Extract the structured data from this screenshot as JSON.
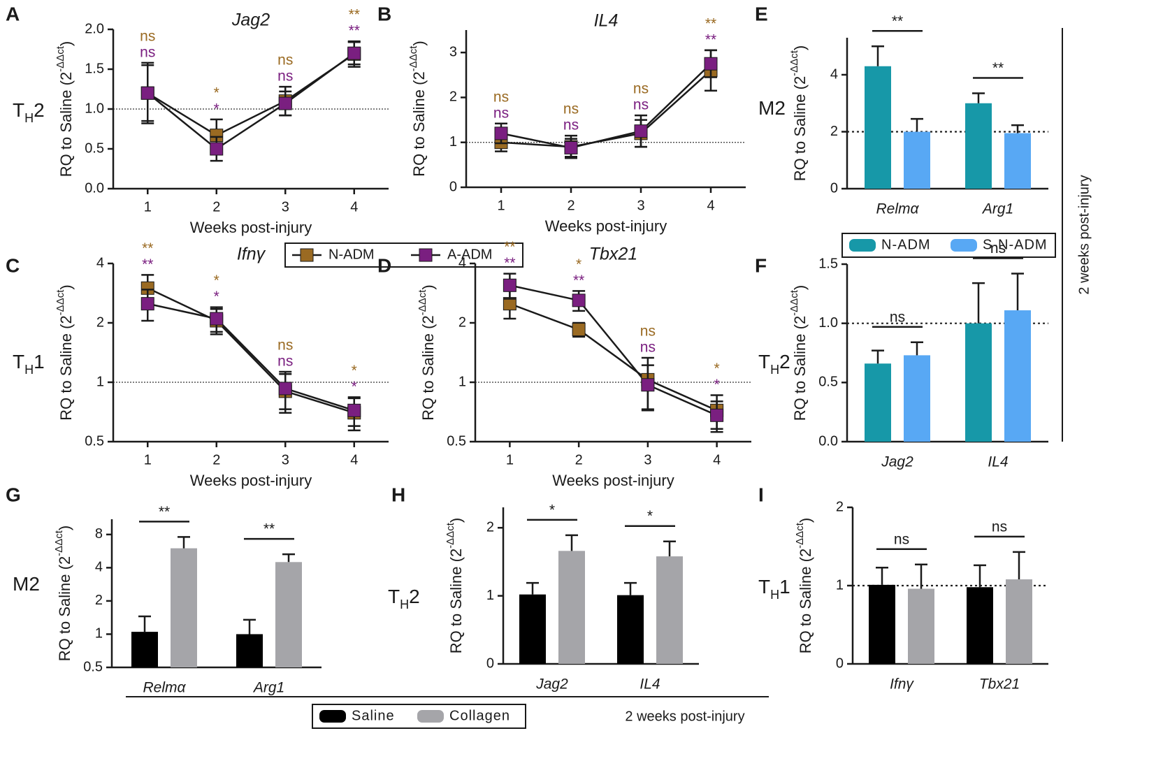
{
  "chart_data": [
    {
      "type": "line",
      "letter": "A",
      "title": "Jag2",
      "ylabel": [
        "RQ to Saline (2",
        "-ΔΔct",
        ")"
      ],
      "xlabel": "Weeks post-injury",
      "row_label": [
        "T",
        "H",
        "2"
      ],
      "x": [
        1,
        2,
        3,
        4
      ],
      "xlim": [
        0.5,
        4.5
      ],
      "xticks": [
        1,
        2,
        3,
        4
      ],
      "ylim": [
        0,
        2
      ],
      "yticks": [
        {
          "value": 0,
          "label": "0.0"
        },
        0.5,
        {
          "value": 1,
          "label": "1.0"
        },
        1.5,
        {
          "value": 2,
          "label": "2.0"
        }
      ],
      "ref_line": 1,
      "series": [
        {
          "name": "N-ADM",
          "color": "#9a6a22",
          "values": [
            1.2,
            0.67,
            1.1,
            1.69
          ],
          "errors": [
            0.38,
            0.2,
            0.18,
            0.16
          ],
          "annotations": [
            "ns",
            "*",
            "ns",
            "**"
          ]
        },
        {
          "name": "A-ADM",
          "color": "#7a1f80",
          "values": [
            1.2,
            0.5,
            1.07,
            1.7
          ],
          "errors": [
            0.35,
            0.15,
            0.15,
            0.14
          ],
          "annotations": [
            "ns",
            "*",
            "ns",
            "**"
          ]
        }
      ]
    },
    {
      "type": "line",
      "letter": "B",
      "title": "IL4",
      "ylabel": [
        "RQ to Saline (2",
        "-ΔΔct",
        ")"
      ],
      "xlabel": "Weeks post-injury",
      "x": [
        1,
        2,
        3,
        4
      ],
      "xlim": [
        0.5,
        4.5
      ],
      "xticks": [
        1,
        2,
        3,
        4
      ],
      "ylim": [
        0,
        3.5
      ],
      "yticks": [
        0,
        1,
        2,
        3
      ],
      "ref_line": 1,
      "series": [
        {
          "color": "#9a6a22",
          "values": [
            1.0,
            0.9,
            1.2,
            2.6
          ],
          "errors": [
            0.2,
            0.25,
            0.3,
            0.45
          ],
          "annotations": [
            "ns",
            "ns",
            "ns",
            "**"
          ]
        },
        {
          "color": "#7a1f80",
          "values": [
            1.2,
            0.88,
            1.25,
            2.75
          ],
          "errors": [
            0.22,
            0.2,
            0.35,
            0.3
          ],
          "annotations": [
            "ns",
            "ns",
            "ns",
            "**"
          ]
        }
      ]
    },
    {
      "type": "line",
      "letter": "C",
      "title": "Ifnγ",
      "ylabel": [
        "RQ to Saline (2",
        "-ΔΔct",
        ")"
      ],
      "xlabel": "Weeks post-injury",
      "row_label": [
        "T",
        "H",
        "1"
      ],
      "x": [
        1,
        2,
        3,
        4
      ],
      "xlim": [
        0.5,
        4.5
      ],
      "xticks": [
        1,
        2,
        3,
        4
      ],
      "ylim": [
        0.5,
        4
      ],
      "log_base": 2,
      "yticks": [
        0.5,
        1,
        2,
        4
      ],
      "ref_line": 1,
      "series": [
        {
          "color": "#9a6a22",
          "values": [
            3.0,
            2.05,
            0.9,
            0.7
          ],
          "errors": [
            0.5,
            0.3,
            0.2,
            0.13
          ],
          "annotations": [
            "**",
            "*",
            "ns",
            "*"
          ]
        },
        {
          "color": "#7a1f80",
          "values": [
            2.5,
            2.1,
            0.93,
            0.72
          ],
          "errors": [
            0.45,
            0.3,
            0.2,
            0.12
          ],
          "annotations": [
            "**",
            "*",
            "ns",
            "*"
          ]
        }
      ]
    },
    {
      "type": "line",
      "letter": "D",
      "title": "Tbx21",
      "ylabel": [
        "RQ to Saline (2",
        "-ΔΔct",
        ")"
      ],
      "xlabel": "Weeks post-injury",
      "x": [
        1,
        2,
        3,
        4
      ],
      "xlim": [
        0.5,
        4.5
      ],
      "xticks": [
        1,
        2,
        3,
        4
      ],
      "ylim": [
        0.5,
        4
      ],
      "log_base": 2,
      "yticks": [
        0.5,
        1,
        2,
        4
      ],
      "ref_line": 1,
      "series": [
        {
          "color": "#9a6a22",
          "values": [
            2.5,
            1.85,
            1.03,
            0.72
          ],
          "errors": [
            0.4,
            0.15,
            0.3,
            0.14
          ],
          "annotations": [
            "**",
            "*",
            "ns",
            "*"
          ]
        },
        {
          "color": "#7a1f80",
          "values": [
            3.1,
            2.6,
            0.97,
            0.68
          ],
          "errors": [
            0.45,
            0.3,
            0.25,
            0.12
          ],
          "annotations": [
            "**",
            "**",
            "ns",
            "*"
          ]
        }
      ]
    },
    {
      "type": "bar",
      "letter": "E",
      "ylabel": [
        "RQ to Saline (2",
        "-ΔΔct",
        ")"
      ],
      "row_label": [
        "M2"
      ],
      "categories": [
        "Relmα",
        "Arg1"
      ],
      "ylim": [
        0,
        5.3
      ],
      "yticks": [
        0,
        2,
        4
      ],
      "ref_line": 2,
      "comparisons": [
        "**",
        "**"
      ],
      "series": [
        {
          "name": "N-ADM",
          "color": "#1798a8",
          "values": [
            4.3,
            3.0
          ],
          "errors": [
            0.7,
            0.35
          ]
        },
        {
          "name": "S-N-ADM",
          "color": "#58a8f4",
          "values": [
            2.0,
            1.95
          ],
          "errors": [
            0.45,
            0.28
          ]
        }
      ]
    },
    {
      "type": "bar",
      "letter": "F",
      "ylabel": [
        "RQ to Saline (2",
        "-ΔΔct",
        ")"
      ],
      "row_label": [
        "T",
        "H",
        "2"
      ],
      "categories": [
        "Jag2",
        "IL4"
      ],
      "ylim": [
        0,
        1.5
      ],
      "yticks": [
        {
          "value": 0,
          "label": "0.0"
        },
        0.5,
        {
          "value": 1,
          "label": "1.0"
        },
        1.5
      ],
      "ref_line": 1,
      "comparisons": [
        "ns",
        "ns"
      ],
      "series": [
        {
          "color": "#1798a8",
          "values": [
            0.66,
            1.0
          ],
          "errors": [
            0.11,
            0.34
          ]
        },
        {
          "color": "#58a8f4",
          "values": [
            0.73,
            1.11
          ],
          "errors": [
            0.11,
            0.31
          ]
        }
      ]
    },
    {
      "type": "bar",
      "letter": "G",
      "ylabel": [
        "RQ to Saline (2",
        "-ΔΔct",
        ")"
      ],
      "row_label": [
        "M2"
      ],
      "categories": [
        "Relmα",
        "Arg1"
      ],
      "ylim": [
        0.5,
        11
      ],
      "log_base": 2,
      "yticks": [
        0.5,
        1,
        2,
        4,
        8
      ],
      "comparisons": [
        "**",
        "**"
      ],
      "series": [
        {
          "name": "Saline",
          "color": "#000000",
          "values": [
            1.05,
            1.0
          ],
          "errors": [
            0.4,
            0.35
          ]
        },
        {
          "name": "Collagen",
          "color": "#a5a5a9",
          "values": [
            6.0,
            4.5
          ],
          "errors": [
            1.6,
            0.8
          ]
        }
      ]
    },
    {
      "type": "bar",
      "letter": "H",
      "ylabel": [
        "RQ to Saline (2",
        "-ΔΔct",
        ")"
      ],
      "row_label": [
        "T",
        "H",
        "2"
      ],
      "categories": [
        "Jag2",
        "IL4"
      ],
      "ylim": [
        0,
        2.3
      ],
      "yticks": [
        0,
        1,
        2
      ],
      "comparisons": [
        "*",
        "*"
      ],
      "series": [
        {
          "color": "#000000",
          "values": [
            1.02,
            1.01
          ],
          "errors": [
            0.17,
            0.18
          ]
        },
        {
          "color": "#a5a5a9",
          "values": [
            1.66,
            1.58
          ],
          "errors": [
            0.23,
            0.22
          ]
        }
      ]
    },
    {
      "type": "bar",
      "letter": "I",
      "ylabel": [
        "RQ to Saline (2",
        "-ΔΔct",
        ")"
      ],
      "row_label": [
        "T",
        "H",
        "1"
      ],
      "categories": [
        "Ifnγ",
        "Tbx21"
      ],
      "ylim": [
        0,
        2
      ],
      "yticks": [
        0,
        1,
        2
      ],
      "ref_line": 1,
      "comparisons": [
        "ns",
        "ns"
      ],
      "series": [
        {
          "color": "#000000",
          "values": [
            1.01,
            0.98
          ],
          "errors": [
            0.22,
            0.28
          ]
        },
        {
          "color": "#a5a5a9",
          "values": [
            0.96,
            1.08
          ],
          "errors": [
            0.31,
            0.35
          ]
        }
      ]
    }
  ],
  "side_label": "2 weeks post-injury",
  "bottom_label": "2 weeks post-injury"
}
